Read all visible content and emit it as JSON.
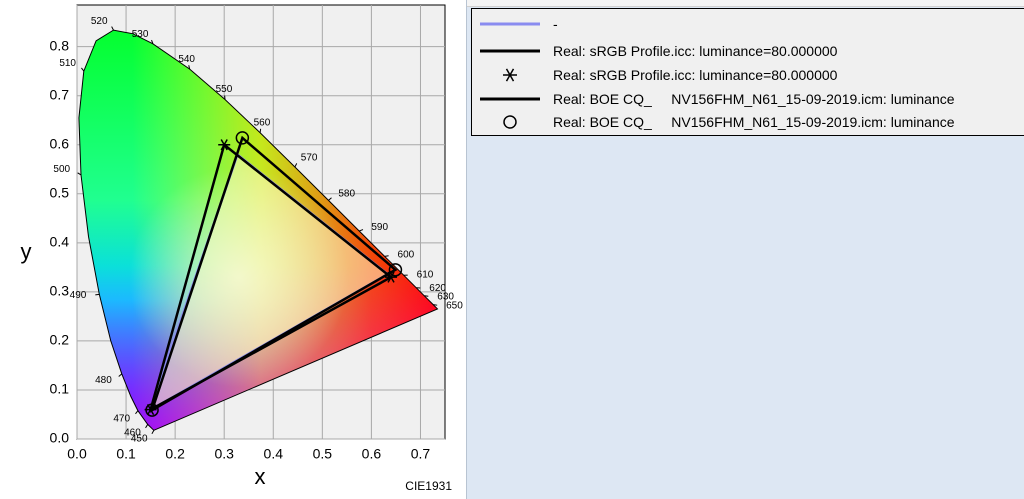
{
  "chart_data": {
    "type": "line",
    "xlabel": "x",
    "ylabel": "y",
    "annotation": "CIE1931",
    "xlim": [
      0,
      0.75
    ],
    "ylim": [
      0,
      0.885
    ],
    "xticks": [
      {
        "value": 0,
        "label": "0.0"
      },
      0.1,
      0.2,
      0.3,
      0.4,
      0.5,
      0.6,
      0.7
    ],
    "yticks": [
      {
        "value": 0,
        "label": "0.0"
      },
      0.1,
      0.2,
      0.3,
      0.4,
      0.5,
      0.6,
      0.7,
      0.8
    ],
    "grid": true,
    "spectral_locus": {
      "labels": [
        450,
        460,
        470,
        null,
        480,
        null,
        490,
        null,
        500,
        null,
        510,
        null,
        520,
        null,
        530,
        540,
        550,
        560,
        570,
        580,
        590,
        600,
        610,
        620,
        630,
        650,
        null
      ],
      "x": [
        0.1566,
        0.144,
        0.1241,
        0.1096,
        0.0913,
        0.0687,
        0.0454,
        0.0235,
        0.0082,
        0.0039,
        0.0139,
        0.0389,
        0.0743,
        0.1142,
        0.1547,
        0.2296,
        0.3016,
        0.3731,
        0.4441,
        0.5125,
        0.5752,
        0.627,
        0.6658,
        0.6915,
        0.7079,
        0.726,
        0.7347
      ],
      "y": [
        0.0177,
        0.0297,
        0.0578,
        0.0868,
        0.1327,
        0.2007,
        0.295,
        0.4127,
        0.5384,
        0.6548,
        0.7502,
        0.812,
        0.8338,
        0.8262,
        0.8059,
        0.7543,
        0.6923,
        0.6245,
        0.5547,
        0.4866,
        0.4242,
        0.3725,
        0.334,
        0.3083,
        0.292,
        0.274,
        0.2653
      ]
    },
    "series": [
      {
        "name": "-",
        "color": "#8a8cf0",
        "style": "line",
        "fill_color": "#fffbc8",
        "x": [
          0.633,
          0.327,
          0.149
        ],
        "y": [
          0.336,
          0.58,
          0.059
        ]
      },
      {
        "name": "Real: sRGB Profile.icc: luminance=80.000000",
        "color": "#000000",
        "style": "line",
        "x": [
          0.64,
          0.3,
          0.15
        ],
        "y": [
          0.33,
          0.6,
          0.06
        ]
      },
      {
        "name": "Real: sRGB Profile.icc: luminance=80.000000",
        "color": "#000000",
        "style": "star",
        "x": [
          0.64,
          0.3,
          0.15
        ],
        "y": [
          0.33,
          0.6,
          0.06
        ]
      },
      {
        "name": "Real: BOE CQ_     NV156FHM_N61_15-09-2019.icm: luminance",
        "color": "#000000",
        "style": "line",
        "x": [
          0.649,
          0.337,
          0.153
        ],
        "y": [
          0.345,
          0.614,
          0.059
        ]
      },
      {
        "name": "Real: BOE CQ_     NV156FHM_N61_15-09-2019.icm: luminance",
        "color": "#000000",
        "style": "circle",
        "x": [
          0.649,
          0.337,
          0.153
        ],
        "y": [
          0.345,
          0.614,
          0.059
        ]
      }
    ]
  }
}
